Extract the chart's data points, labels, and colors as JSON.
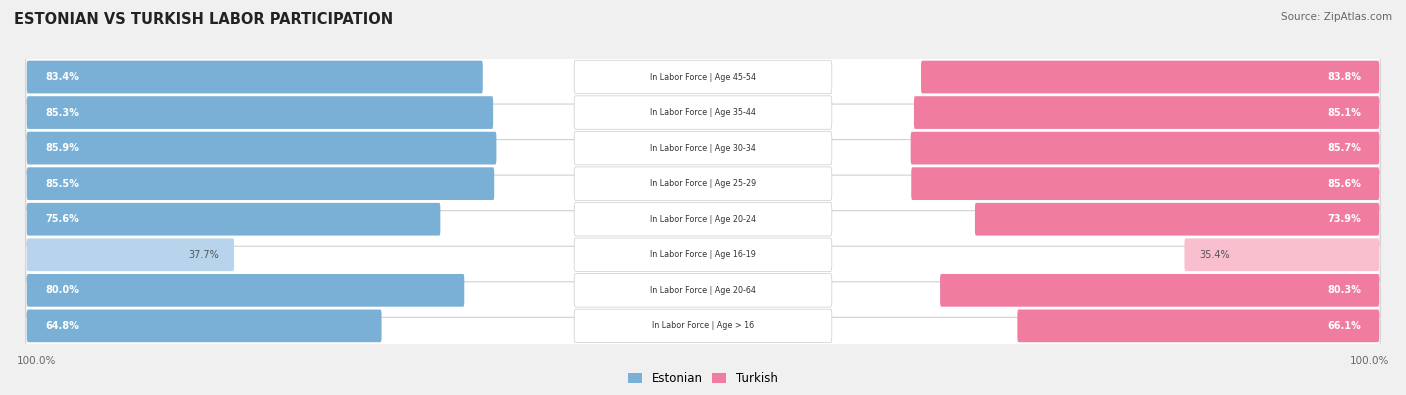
{
  "title": "ESTONIAN VS TURKISH LABOR PARTICIPATION",
  "source": "Source: ZipAtlas.com",
  "categories": [
    "In Labor Force | Age > 16",
    "In Labor Force | Age 20-64",
    "In Labor Force | Age 16-19",
    "In Labor Force | Age 20-24",
    "In Labor Force | Age 25-29",
    "In Labor Force | Age 30-34",
    "In Labor Force | Age 35-44",
    "In Labor Force | Age 45-54"
  ],
  "estonian": [
    64.8,
    80.0,
    37.7,
    75.6,
    85.5,
    85.9,
    85.3,
    83.4
  ],
  "turkish": [
    66.1,
    80.3,
    35.4,
    73.9,
    85.6,
    85.7,
    85.1,
    83.8
  ],
  "estonian_color": "#7aafd6",
  "turkish_color": "#f07ca0",
  "estonian_light_color": "#b8d4ed",
  "turkish_light_color": "#f9bfcf",
  "bg_color": "#f0f0f0",
  "label_white": "#ffffff",
  "label_dark": "#555555",
  "legend_estonian": "Estonian",
  "legend_turkish": "Turkish",
  "max_val": 100.0,
  "bottom_label": "100.0%"
}
